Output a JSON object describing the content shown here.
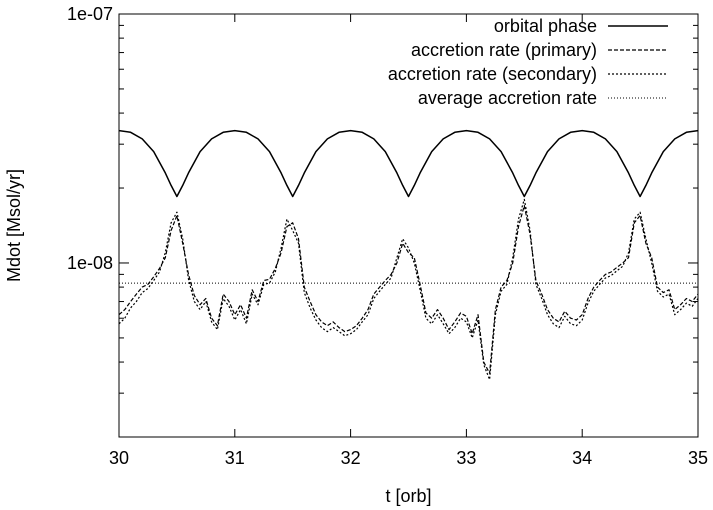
{
  "chart_data": {
    "type": "line",
    "title": "",
    "xlabel": "t [orb]",
    "ylabel": "Mdot [Msol/yr]",
    "xlim": [
      30,
      35
    ],
    "ylim": [
      2e-09,
      1e-07
    ],
    "yscale": "log",
    "x_ticks": [
      {
        "v": 30,
        "label": "30"
      },
      {
        "v": 31,
        "label": "31"
      },
      {
        "v": 32,
        "label": "32"
      },
      {
        "v": 33,
        "label": "33"
      },
      {
        "v": 34,
        "label": "34"
      },
      {
        "v": 35,
        "label": "35"
      }
    ],
    "y_major_ticks": [
      {
        "v": 1e-08,
        "label": "1e-08"
      },
      {
        "v": 1e-07,
        "label": "1e-07"
      }
    ],
    "y_minor_ticks": [
      3e-09,
      4e-09,
      5e-09,
      6e-09,
      7e-09,
      8e-09,
      9e-09,
      2e-08,
      3e-08,
      4e-08,
      5e-08,
      6e-08,
      7e-08,
      8e-08,
      9e-08
    ],
    "grid": false,
    "legend_position": "top-right",
    "series": [
      {
        "name": "orbital phase",
        "style": "solid",
        "x": [
          30.0,
          30.1,
          30.2,
          30.3,
          30.4,
          30.45,
          30.5,
          30.55,
          30.6,
          30.7,
          30.8,
          30.9,
          31.0,
          31.1,
          31.2,
          31.3,
          31.4,
          31.45,
          31.5,
          31.55,
          31.6,
          31.7,
          31.8,
          31.9,
          32.0,
          32.1,
          32.2,
          32.3,
          32.4,
          32.45,
          32.5,
          32.55,
          32.6,
          32.7,
          32.8,
          32.9,
          33.0,
          33.1,
          33.2,
          33.3,
          33.4,
          33.45,
          33.5,
          33.55,
          33.6,
          33.7,
          33.8,
          33.9,
          34.0,
          34.1,
          34.2,
          34.3,
          34.4,
          34.45,
          34.5,
          34.55,
          34.6,
          34.7,
          34.8,
          34.9,
          35.0
        ],
        "y": [
          3.4e-08,
          3.35e-08,
          3.15e-08,
          2.8e-08,
          2.3e-08,
          2.05e-08,
          1.85e-08,
          2.05e-08,
          2.3e-08,
          2.8e-08,
          3.15e-08,
          3.35e-08,
          3.4e-08,
          3.35e-08,
          3.15e-08,
          2.8e-08,
          2.3e-08,
          2.05e-08,
          1.85e-08,
          2.05e-08,
          2.3e-08,
          2.8e-08,
          3.15e-08,
          3.35e-08,
          3.4e-08,
          3.35e-08,
          3.15e-08,
          2.8e-08,
          2.3e-08,
          2.05e-08,
          1.85e-08,
          2.05e-08,
          2.3e-08,
          2.8e-08,
          3.15e-08,
          3.35e-08,
          3.4e-08,
          3.35e-08,
          3.15e-08,
          2.8e-08,
          2.3e-08,
          2.05e-08,
          1.85e-08,
          2.05e-08,
          2.3e-08,
          2.8e-08,
          3.15e-08,
          3.35e-08,
          3.4e-08,
          3.35e-08,
          3.15e-08,
          2.8e-08,
          2.3e-08,
          2.05e-08,
          1.85e-08,
          2.05e-08,
          2.3e-08,
          2.8e-08,
          3.15e-08,
          3.35e-08,
          3.4e-08
        ]
      },
      {
        "name": "accretion rate (primary)",
        "style": "dashed",
        "x": [
          30.0,
          30.05,
          30.1,
          30.15,
          30.2,
          30.25,
          30.3,
          30.35,
          30.4,
          30.45,
          30.5,
          30.55,
          30.6,
          30.65,
          30.7,
          30.75,
          30.8,
          30.85,
          30.9,
          30.95,
          31.0,
          31.05,
          31.1,
          31.15,
          31.2,
          31.25,
          31.3,
          31.35,
          31.4,
          31.45,
          31.5,
          31.55,
          31.6,
          31.65,
          31.7,
          31.75,
          31.8,
          31.85,
          31.9,
          31.95,
          32.0,
          32.05,
          32.1,
          32.15,
          32.2,
          32.25,
          32.3,
          32.35,
          32.4,
          32.45,
          32.5,
          32.55,
          32.6,
          32.65,
          32.7,
          32.75,
          32.8,
          32.85,
          32.9,
          32.95,
          33.0,
          33.05,
          33.1,
          33.15,
          33.2,
          33.25,
          33.3,
          33.35,
          33.4,
          33.45,
          33.5,
          33.55,
          33.6,
          33.65,
          33.7,
          33.75,
          33.8,
          33.85,
          33.9,
          33.95,
          34.0,
          34.05,
          34.1,
          34.15,
          34.2,
          34.25,
          34.3,
          34.35,
          34.4,
          34.45,
          34.5,
          34.55,
          34.6,
          34.65,
          34.7,
          34.75,
          34.8,
          34.85,
          34.9,
          34.95,
          35.0
        ],
        "y": [
          6.2e-09,
          6.5e-09,
          7e-09,
          7.5e-09,
          8e-09,
          8.2e-09,
          8.8e-09,
          9.5e-09,
          1.05e-08,
          1.35e-08,
          1.55e-08,
          1.2e-08,
          9e-09,
          7.4e-09,
          6.8e-09,
          7.2e-09,
          6e-09,
          5.6e-09,
          7.5e-09,
          7e-09,
          6.2e-09,
          6.8e-09,
          6e-09,
          7.8e-09,
          7e-09,
          8.5e-09,
          8.6e-09,
          9.5e-09,
          1.1e-08,
          1.4e-08,
          1.45e-08,
          1.25e-08,
          8e-09,
          7e-09,
          6.2e-09,
          5.8e-09,
          5.6e-09,
          5.8e-09,
          5.5e-09,
          5.3e-09,
          5.4e-09,
          5.6e-09,
          6e-09,
          6.5e-09,
          7.5e-09,
          8e-09,
          8.5e-09,
          9e-09,
          1e-08,
          1.2e-08,
          1.1e-08,
          1.05e-08,
          8.2e-09,
          6.3e-09,
          6e-09,
          6.5e-09,
          6e-09,
          5.4e-09,
          5.8e-09,
          6.3e-09,
          6.1e-09,
          5.2e-09,
          6.2e-09,
          4e-09,
          3.6e-09,
          6.5e-09,
          8e-09,
          8.5e-09,
          1e-08,
          1.4e-08,
          1.7e-08,
          1.3e-08,
          8.5e-09,
          7.5e-09,
          6.5e-09,
          6e-09,
          5.8e-09,
          6.4e-09,
          6e-09,
          5.9e-09,
          6.2e-09,
          7.2e-09,
          8e-09,
          8.5e-09,
          9e-09,
          9.2e-09,
          9.6e-09,
          1e-08,
          1.05e-08,
          1.45e-08,
          1.55e-08,
          1.2e-08,
          1.05e-08,
          8e-09,
          7.6e-09,
          7.8e-09,
          6.5e-09,
          6.8e-09,
          7.2e-09,
          7e-09,
          7.5e-09
        ]
      },
      {
        "name": "accretion rate (secondary)",
        "style": "dotted",
        "x": [
          30.0,
          30.05,
          30.1,
          30.15,
          30.2,
          30.25,
          30.3,
          30.35,
          30.4,
          30.45,
          30.5,
          30.55,
          30.6,
          30.65,
          30.7,
          30.75,
          30.8,
          30.85,
          30.9,
          30.95,
          31.0,
          31.05,
          31.1,
          31.15,
          31.2,
          31.25,
          31.3,
          31.35,
          31.4,
          31.45,
          31.5,
          31.55,
          31.6,
          31.65,
          31.7,
          31.75,
          31.8,
          31.85,
          31.9,
          31.95,
          32.0,
          32.05,
          32.1,
          32.15,
          32.2,
          32.25,
          32.3,
          32.35,
          32.4,
          32.45,
          32.5,
          32.55,
          32.6,
          32.65,
          32.7,
          32.75,
          32.8,
          32.85,
          32.9,
          32.95,
          33.0,
          33.05,
          33.1,
          33.15,
          33.2,
          33.25,
          33.3,
          33.35,
          33.4,
          33.45,
          33.5,
          33.55,
          33.6,
          33.65,
          33.7,
          33.75,
          33.8,
          33.85,
          33.9,
          33.95,
          34.0,
          34.05,
          34.1,
          34.15,
          34.2,
          34.25,
          34.3,
          34.35,
          34.4,
          34.45,
          34.5,
          34.55,
          34.6,
          34.65,
          34.7,
          34.75,
          34.8,
          34.85,
          34.9,
          34.95,
          35.0
        ],
        "y": [
          5.7e-09,
          6e-09,
          6.6e-09,
          7e-09,
          7.6e-09,
          7.9e-09,
          8.5e-09,
          9.2e-09,
          1.1e-08,
          1.45e-08,
          1.6e-08,
          1.25e-08,
          8.6e-09,
          7e-09,
          6.5e-09,
          7e-09,
          5.8e-09,
          5.4e-09,
          7.2e-09,
          6.7e-09,
          5.9e-09,
          6.5e-09,
          5.7e-09,
          7.5e-09,
          6.8e-09,
          8.2e-09,
          8.3e-09,
          9.2e-09,
          1.15e-08,
          1.5e-08,
          1.35e-08,
          1.2e-08,
          7.6e-09,
          6.6e-09,
          5.9e-09,
          5.5e-09,
          5.3e-09,
          5.5e-09,
          5.3e-09,
          5.1e-09,
          5.2e-09,
          5.4e-09,
          5.8e-09,
          6.2e-09,
          7.2e-09,
          7.7e-09,
          8.2e-09,
          8.7e-09,
          1.05e-08,
          1.25e-08,
          1.15e-08,
          1e-08,
          7.8e-09,
          6e-09,
          5.7e-09,
          6.2e-09,
          5.7e-09,
          5.2e-09,
          5.5e-09,
          6e-09,
          5.8e-09,
          5e-09,
          5.9e-09,
          3.9e-09,
          3.4e-09,
          6.2e-09,
          7.7e-09,
          8.2e-09,
          1.05e-08,
          1.5e-08,
          1.8e-08,
          1.35e-08,
          8.2e-09,
          7.2e-09,
          6.2e-09,
          5.7e-09,
          5.5e-09,
          6.1e-09,
          5.7e-09,
          5.6e-09,
          5.9e-09,
          6.9e-09,
          7.7e-09,
          8.2e-09,
          8.7e-09,
          8.9e-09,
          9.3e-09,
          9.7e-09,
          1.1e-08,
          1.5e-08,
          1.6e-08,
          1.25e-08,
          1e-08,
          7.7e-09,
          7.3e-09,
          7.5e-09,
          6.2e-09,
          6.5e-09,
          6.9e-09,
          6.7e-09,
          7.2e-09
        ]
      },
      {
        "name": "average accretion rate",
        "style": "fine-dotted",
        "x": [
          30,
          35
        ],
        "y": [
          8.3e-09,
          8.3e-09
        ]
      }
    ]
  }
}
